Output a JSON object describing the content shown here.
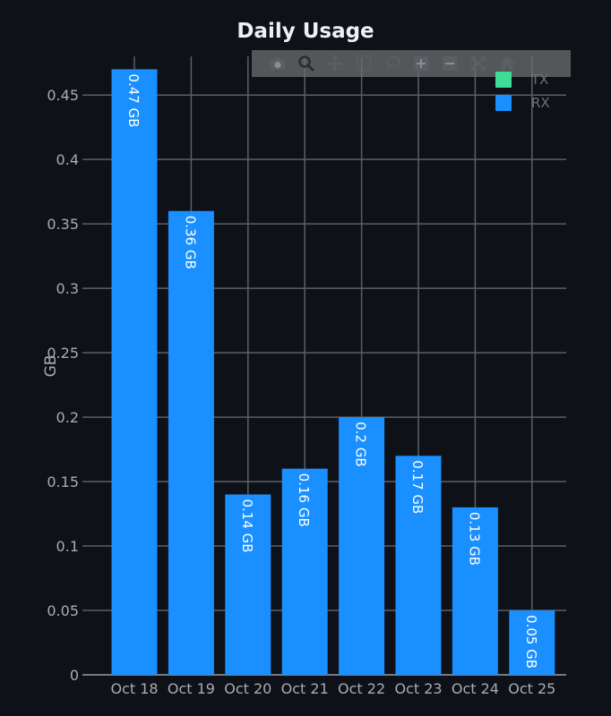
{
  "chart_data": {
    "type": "bar",
    "title": "Daily Usage",
    "xlabel": "",
    "ylabel": "GB",
    "ylim": [
      0,
      0.48
    ],
    "yticks": [
      "0",
      "0.05",
      "0.1",
      "0.15",
      "0.2",
      "0.25",
      "0.3",
      "0.35",
      "0.4",
      "0.45"
    ],
    "ytick_values": [
      0,
      0.05,
      0.1,
      0.15,
      0.2,
      0.25,
      0.3,
      0.35,
      0.4,
      0.45
    ],
    "categories": [
      "Oct 18",
      "Oct 19",
      "Oct 20",
      "Oct 21",
      "Oct 22",
      "Oct 23",
      "Oct 24",
      "Oct 25"
    ],
    "series": [
      {
        "name": "TX",
        "color": "#3ddc97",
        "values": [
          0,
          0,
          0,
          0,
          0,
          0,
          0,
          0
        ]
      },
      {
        "name": "RX",
        "color": "#1a8fff",
        "values": [
          0.47,
          0.36,
          0.14,
          0.16,
          0.2,
          0.17,
          0.13,
          0.05
        ],
        "labels": [
          "0.47 GB",
          "0.36 GB",
          "0.14 GB",
          "0.16 GB",
          "0.2 GB",
          "0.17 GB",
          "0.13 GB",
          "0.05 GB"
        ]
      }
    ],
    "grid": true,
    "legend_position": "top-right"
  },
  "modebar": {
    "icons": [
      "camera-icon",
      "zoom-icon",
      "pan-icon",
      "box-select-icon",
      "lasso-icon",
      "zoom-in-icon",
      "zoom-out-icon",
      "autoscale-icon",
      "home-icon"
    ]
  }
}
